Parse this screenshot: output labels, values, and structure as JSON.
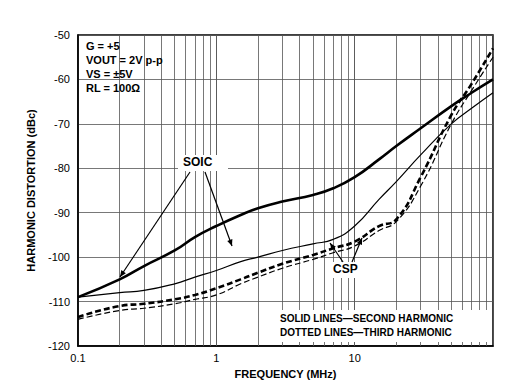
{
  "chart_data": {
    "type": "line",
    "x_label": "FREQUENCY (MHz)",
    "y_label": "HARMONIC DISTORTION (dBc)",
    "log": "x",
    "grid": true,
    "xlim": [
      0.1,
      100
    ],
    "xticks": [
      0.1,
      1,
      10
    ],
    "ylim": [
      -120,
      -50
    ],
    "yticks": [
      -120,
      -110,
      -100,
      -90,
      -80,
      -70,
      -60,
      -50
    ],
    "x": [
      0.1,
      0.2,
      0.3,
      0.5,
      0.7,
      1,
      1.5,
      2,
      3,
      5,
      7,
      10,
      15,
      20,
      30,
      50,
      70,
      100
    ],
    "series": [
      {
        "name": "SOIC",
        "color": "#000000",
        "line_style": "solid",
        "values": [
          -109,
          -105,
          -102,
          -98.5,
          -95.5,
          -93,
          -90.5,
          -89,
          -87.5,
          -86,
          -84.5,
          -82,
          -78,
          -75,
          -71,
          -66,
          -63,
          -60
        ]
      },
      {
        "name": "SOIC",
        "color": "#000000",
        "line_style": "dashed",
        "values": [
          -113.5,
          -111,
          -110.5,
          -109.5,
          -108.5,
          -107,
          -105,
          -103.5,
          -101.5,
          -99.5,
          -98,
          -96.5,
          -93,
          -91.5,
          -82,
          -68,
          -61,
          -53
        ]
      },
      {
        "name": "CSP",
        "color": "#000000",
        "line_style": "solid",
        "values": [
          -109,
          -108,
          -107.5,
          -106,
          -104.5,
          -103,
          -101,
          -100,
          -98.5,
          -97,
          -96,
          -93,
          -87,
          -83,
          -77,
          -70,
          -66.5,
          -63
        ]
      },
      {
        "name": "CSP",
        "color": "#000000",
        "line_style": "dashed",
        "values": [
          -114,
          -112,
          -111.5,
          -110.5,
          -109.5,
          -108.5,
          -106,
          -104.5,
          -102.5,
          -100.5,
          -99,
          -97.5,
          -94,
          -92,
          -84,
          -70,
          -62.5,
          -55
        ]
      }
    ],
    "annotations": {
      "conditions": [
        "G = +5",
        "VOUT = 2V p-p",
        "VS = ±5V",
        "RL = 100Ω"
      ],
      "packages": [
        "SOIC",
        "CSP"
      ],
      "key": [
        "SOLID LINES—SECOND HARMONIC",
        "DOTTED LINES—THIRD HARMONIC"
      ]
    }
  }
}
